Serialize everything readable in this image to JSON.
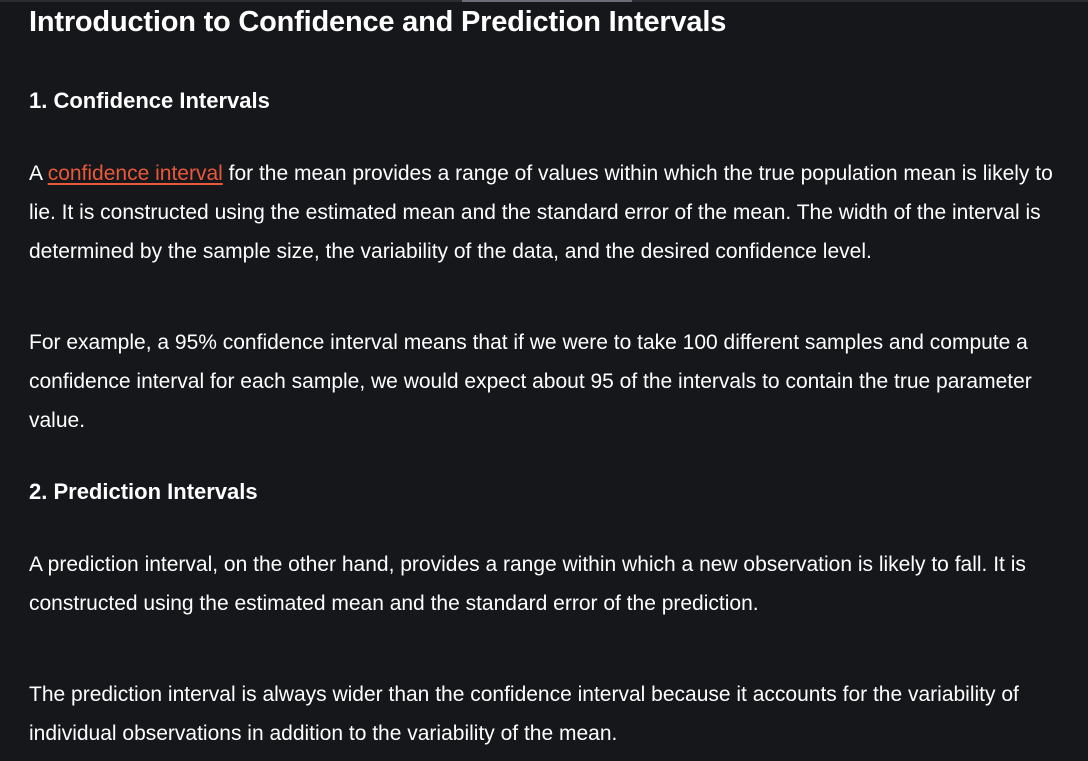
{
  "title": "Introduction to Confidence and Prediction Intervals",
  "sections": [
    {
      "heading": "1. Confidence Intervals",
      "paragraph1": {
        "before": "A ",
        "link": "confidence interval",
        "after": " for the mean provides a range of values within which the true population mean is likely to lie. It is constructed using the estimated mean and the standard error of the mean. The width of the interval is determined by the sample size, the variability of the data, and the desired confidence level."
      },
      "paragraph2": "For example, a 95% confidence interval means that if we were to take 100 different samples and compute a confidence interval for each sample, we would expect about 95 of the intervals to contain the true parameter value."
    },
    {
      "heading": "2. Prediction Intervals",
      "paragraph1": "A prediction interval, on the other hand, provides a range within which a new observation is likely to fall. It is constructed using the estimated mean and the standard error of the prediction.",
      "paragraph2": "The prediction interval is always wider than the confidence interval because it accounts for the variability of individual observations in addition to the variability of the mean."
    }
  ],
  "colors": {
    "background": "#16171b",
    "text": "#ffffff",
    "link": "#e8583a"
  }
}
